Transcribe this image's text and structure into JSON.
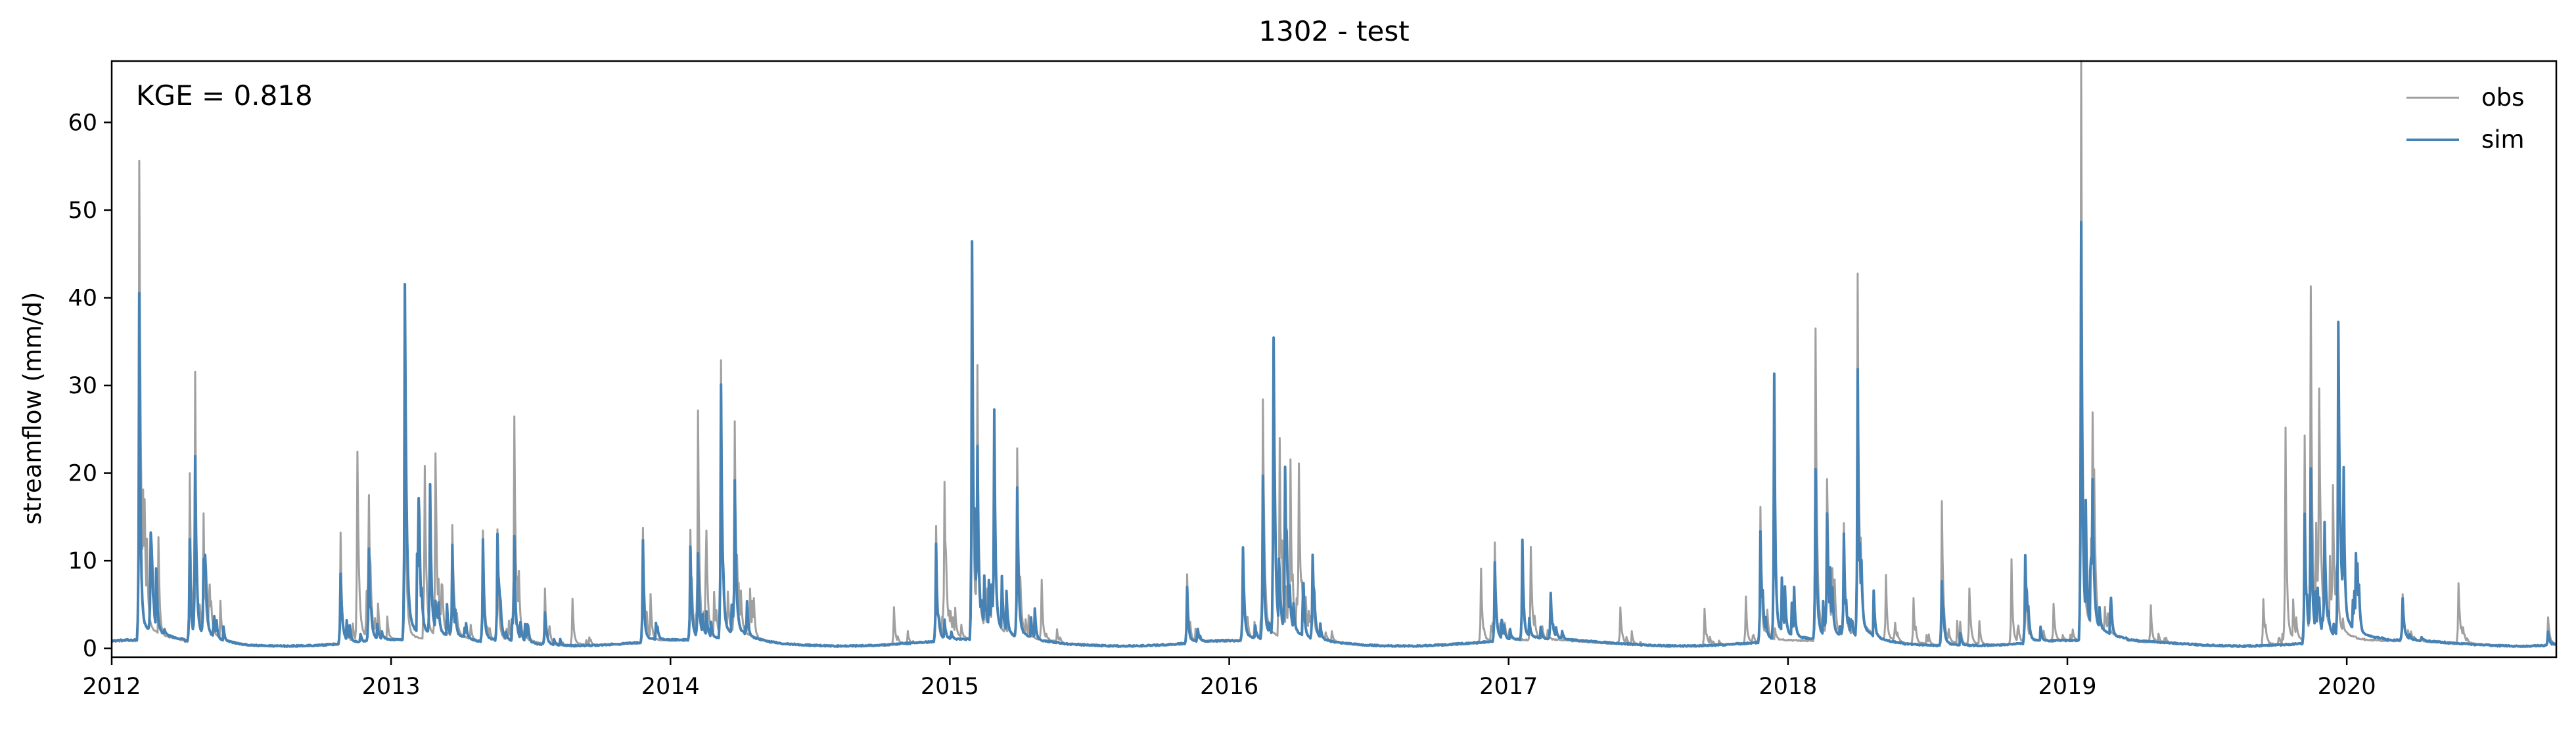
{
  "chart_data": {
    "type": "line",
    "title": "1302 - test",
    "xlabel": "",
    "ylabel": "streamflow (mm/d)",
    "annotation": "KGE = 0.818",
    "x_range": [
      2012.0,
      2020.75
    ],
    "ylim": [
      -1,
      67
    ],
    "x_ticks": [
      2012,
      2013,
      2014,
      2015,
      2016,
      2017,
      2018,
      2019,
      2020
    ],
    "x_tick_labels": [
      "2012",
      "2013",
      "2014",
      "2015",
      "2016",
      "2017",
      "2018",
      "2019",
      "2020"
    ],
    "y_ticks": [
      0,
      10,
      20,
      30,
      40,
      50,
      60
    ],
    "y_tick_labels": [
      "0",
      "10",
      "20",
      "30",
      "40",
      "50",
      "60"
    ],
    "legend": {
      "position": "top-right",
      "entries": [
        "obs",
        "sim"
      ]
    },
    "series": [
      {
        "name": "obs",
        "color": "#a0a0a0",
        "peaks": [
          [
            2012.1,
            51.7
          ],
          [
            2012.28,
            18.1
          ],
          [
            2012.3,
            28.0
          ],
          [
            2012.33,
            12.5
          ],
          [
            2012.82,
            12.0
          ],
          [
            2012.88,
            19.4
          ],
          [
            2012.92,
            13.5
          ],
          [
            2013.05,
            14.0
          ],
          [
            2013.12,
            18.0
          ],
          [
            2013.16,
            19.5
          ],
          [
            2013.22,
            12.0
          ],
          [
            2013.33,
            12.0
          ],
          [
            2013.38,
            12.0
          ],
          [
            2013.44,
            23.7
          ],
          [
            2013.55,
            6.0
          ],
          [
            2013.65,
            5.0
          ],
          [
            2013.9,
            12.3
          ],
          [
            2014.07,
            12.0
          ],
          [
            2014.1,
            23.2
          ],
          [
            2014.13,
            8.0
          ],
          [
            2014.18,
            29.5
          ],
          [
            2014.23,
            22.8
          ],
          [
            2014.8,
            4.0
          ],
          [
            2014.95,
            12.5
          ],
          [
            2014.98,
            16.4
          ],
          [
            2015.08,
            24.5
          ],
          [
            2015.1,
            26.0
          ],
          [
            2015.16,
            19.0
          ],
          [
            2015.24,
            20.3
          ],
          [
            2015.33,
            6.5
          ],
          [
            2015.85,
            7.5
          ],
          [
            2016.05,
            9.0
          ],
          [
            2016.12,
            25.5
          ],
          [
            2016.18,
            20.7
          ],
          [
            2016.22,
            18.0
          ],
          [
            2016.25,
            17.5
          ],
          [
            2016.3,
            6.0
          ],
          [
            2016.9,
            8.0
          ],
          [
            2016.95,
            10.2
          ],
          [
            2017.08,
            10.0
          ],
          [
            2017.4,
            4.0
          ],
          [
            2017.7,
            4.0
          ],
          [
            2017.85,
            5.0
          ],
          [
            2017.9,
            13.0
          ],
          [
            2018.1,
            33.6
          ],
          [
            2018.14,
            16.5
          ],
          [
            2018.2,
            12.0
          ],
          [
            2018.25,
            39.0
          ],
          [
            2018.35,
            7.0
          ],
          [
            2018.45,
            5.0
          ],
          [
            2018.55,
            15.5
          ],
          [
            2018.65,
            6.0
          ],
          [
            2018.8,
            9.2
          ],
          [
            2018.85,
            8.5
          ],
          [
            2018.95,
            4.0
          ],
          [
            2019.05,
            64.0
          ],
          [
            2019.09,
            20.5
          ],
          [
            2019.3,
            4.0
          ],
          [
            2019.7,
            5.0
          ],
          [
            2019.78,
            23.2
          ],
          [
            2019.85,
            22.0
          ],
          [
            2019.87,
            37.2
          ],
          [
            2019.9,
            24.5
          ],
          [
            2019.95,
            15.0
          ],
          [
            2020.2,
            5.0
          ],
          [
            2020.4,
            6.5
          ],
          [
            2020.72,
            3.0
          ]
        ]
      },
      {
        "name": "sim",
        "color": "#4682b4",
        "peaks": [
          [
            2012.1,
            37.3
          ],
          [
            2012.14,
            10.5
          ],
          [
            2012.28,
            11.0
          ],
          [
            2012.3,
            17.5
          ],
          [
            2012.33,
            8.0
          ],
          [
            2012.82,
            7.5
          ],
          [
            2012.92,
            10.0
          ],
          [
            2013.05,
            38.2
          ],
          [
            2013.1,
            12.0
          ],
          [
            2013.14,
            16.0
          ],
          [
            2013.22,
            10.0
          ],
          [
            2013.33,
            11.0
          ],
          [
            2013.38,
            11.5
          ],
          [
            2013.44,
            11.0
          ],
          [
            2013.55,
            3.5
          ],
          [
            2013.9,
            11.0
          ],
          [
            2014.07,
            10.0
          ],
          [
            2014.1,
            9.0
          ],
          [
            2014.18,
            27.3
          ],
          [
            2014.23,
            16.3
          ],
          [
            2014.95,
            10.5
          ],
          [
            2015.08,
            42.8
          ],
          [
            2015.1,
            18.0
          ],
          [
            2015.16,
            20.8
          ],
          [
            2015.24,
            16.0
          ],
          [
            2015.85,
            6.0
          ],
          [
            2016.05,
            10.0
          ],
          [
            2016.12,
            17.5
          ],
          [
            2016.16,
            30.9
          ],
          [
            2016.2,
            17.5
          ],
          [
            2016.3,
            9.0
          ],
          [
            2016.95,
            8.5
          ],
          [
            2017.05,
            10.7
          ],
          [
            2017.15,
            5.0
          ],
          [
            2017.9,
            12.0
          ],
          [
            2017.95,
            28.5
          ],
          [
            2018.1,
            18.2
          ],
          [
            2018.14,
            13.0
          ],
          [
            2018.2,
            11.0
          ],
          [
            2018.25,
            28.8
          ],
          [
            2018.55,
            7.0
          ],
          [
            2018.85,
            9.5
          ],
          [
            2019.05,
            45.0
          ],
          [
            2019.09,
            14.0
          ],
          [
            2019.85,
            14.0
          ],
          [
            2019.87,
            18.0
          ],
          [
            2019.92,
            12.0
          ],
          [
            2019.97,
            33.8
          ],
          [
            2019.99,
            15.5
          ],
          [
            2020.2,
            4.5
          ],
          [
            2020.72,
            1.5
          ]
        ]
      }
    ]
  }
}
